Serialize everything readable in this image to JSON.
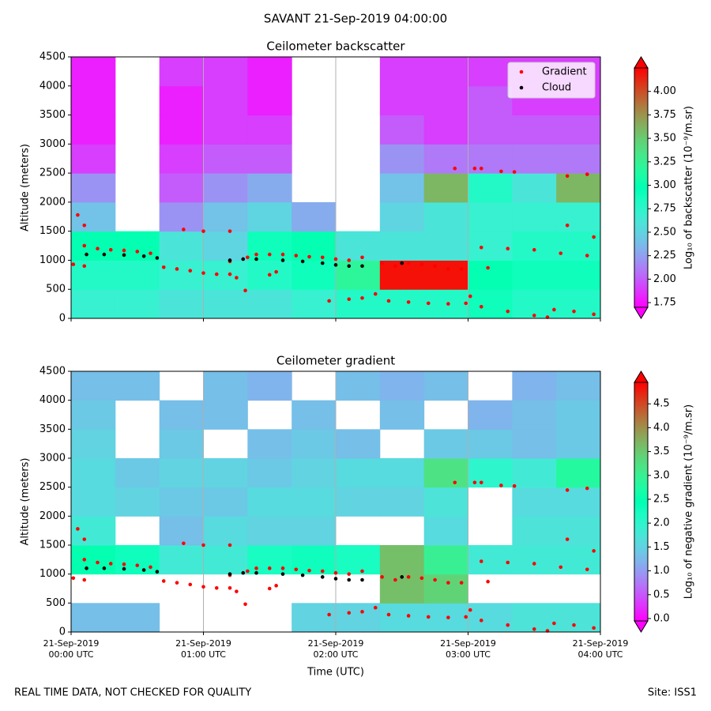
{
  "title": "SAVANT 21-Sep-2019 04:00:00",
  "footer": "REAL TIME DATA, NOT CHECKED FOR QUALITY",
  "site": "Site: ISS1",
  "chart_data": [
    {
      "type": "heatmap",
      "title": "Ceilometer backscatter",
      "ylabel": "Altitude (meters)",
      "xlim": [
        0,
        240
      ],
      "xticks": [
        0,
        60,
        120,
        180,
        240
      ],
      "ylim": [
        0,
        4500
      ],
      "yticks": [
        0,
        500,
        1000,
        1500,
        2000,
        2500,
        3000,
        3500,
        4000,
        4500
      ],
      "grid": "x",
      "colormap": "rainbow",
      "clim": [
        1.7,
        4.25
      ],
      "cticks": [
        1.75,
        {
          "value": 2,
          "label": "2.00"
        },
        2.25,
        {
          "value": 2.5,
          "label": "2.50"
        },
        2.75,
        {
          "value": 3,
          "label": "3.00"
        },
        3.25,
        {
          "value": 3.5,
          "label": "3.50"
        },
        3.75,
        {
          "value": 4,
          "label": "4.00"
        }
      ],
      "clabel": "Log₁₀ of backscatter (10⁻⁹/m.sr)",
      "xedges": [
        0,
        20,
        40,
        60,
        80,
        100,
        120,
        140,
        160,
        180,
        200,
        220,
        240
      ],
      "yedges": [
        0,
        500,
        1000,
        1500,
        2000,
        2500,
        3000,
        3500,
        4000,
        4500
      ],
      "z": [
        [
          2.7,
          2.7,
          2.6,
          2.6,
          2.6,
          2.7,
          2.8,
          2.8,
          2.8,
          2.9,
          2.8,
          2.8
        ],
        [
          2.8,
          2.8,
          2.7,
          2.7,
          2.8,
          2.9,
          3.2,
          4.2,
          4.2,
          3.0,
          2.9,
          2.9
        ],
        [
          3.0,
          3.0,
          2.6,
          2.5,
          2.9,
          3.0,
          2.6,
          2.6,
          2.6,
          2.7,
          2.8,
          2.8
        ],
        [
          2.4,
          null,
          2.2,
          2.4,
          2.5,
          2.3,
          null,
          2.5,
          2.6,
          2.7,
          2.7,
          2.7
        ],
        [
          2.2,
          null,
          2.0,
          2.2,
          2.3,
          null,
          null,
          2.4,
          3.6,
          2.8,
          2.6,
          3.6
        ],
        [
          1.9,
          null,
          1.9,
          2.0,
          2.0,
          null,
          null,
          2.2,
          2.1,
          2.1,
          2.1,
          2.1
        ],
        [
          1.8,
          null,
          1.8,
          1.9,
          1.9,
          null,
          null,
          2.0,
          1.9,
          2.0,
          2.0,
          2.0
        ],
        [
          1.8,
          null,
          1.8,
          1.9,
          1.8,
          null,
          null,
          1.9,
          1.9,
          2.0,
          1.9,
          1.9
        ],
        [
          1.8,
          null,
          1.9,
          1.9,
          1.8,
          null,
          null,
          1.9,
          1.9,
          1.9,
          1.9,
          1.9
        ]
      ],
      "legend": "upper right",
      "series": [
        {
          "name": "Gradient",
          "color": "#ff0000",
          "x": [
            1,
            6,
            3,
            6,
            6,
            12,
            18,
            24,
            30,
            36,
            42,
            48,
            54,
            60,
            66,
            72,
            51,
            60,
            72,
            72,
            75,
            79,
            84,
            90,
            80,
            90,
            93,
            96,
            102,
            108,
            114,
            120,
            126,
            132,
            117,
            126,
            132,
            138,
            141,
            147,
            153,
            159,
            165,
            171,
            177,
            144,
            153,
            162,
            171,
            179,
            174,
            183,
            186,
            195,
            201,
            186,
            198,
            210,
            222,
            234,
            186,
            198,
            210,
            216,
            219,
            228,
            237,
            225,
            237,
            225,
            234,
            189,
            181
          ],
          "values": [
            930,
            900,
            1780,
            1600,
            1250,
            1200,
            1180,
            1170,
            1150,
            1120,
            880,
            850,
            820,
            780,
            760,
            760,
            1530,
            1500,
            1500,
            980,
            700,
            480,
            1100,
            1100,
            1050,
            750,
            800,
            1100,
            1080,
            1060,
            1050,
            1020,
            1000,
            1050,
            300,
            330,
            350,
            420,
            950,
            900,
            950,
            930,
            900,
            850,
            850,
            300,
            280,
            260,
            250,
            260,
            2580,
            2580,
            2580,
            2530,
            2520,
            1220,
            1200,
            1180,
            1120,
            1080,
            200,
            120,
            50,
            20,
            150,
            120,
            70,
            1600,
            1400,
            2450,
            2480,
            870,
            380
          ]
        },
        {
          "name": "Cloud",
          "color": "#000000",
          "x": [
            7,
            15,
            24,
            33,
            39,
            72,
            78,
            84,
            96,
            105,
            114,
            120,
            126,
            132,
            150
          ],
          "values": [
            1100,
            1100,
            1090,
            1070,
            1040,
            1000,
            1020,
            1020,
            1000,
            980,
            950,
            920,
            900,
            900,
            950
          ]
        }
      ]
    },
    {
      "type": "heatmap",
      "title": "Ceilometer gradient",
      "ylabel": "Altitude (meters)",
      "xlabel": "Time (UTC)",
      "xlim": [
        0,
        240
      ],
      "xticks": [
        {
          "value": 0,
          "label": "21-Sep-2019\n00:00 UTC"
        },
        {
          "value": 60,
          "label": "21-Sep-2019\n01:00 UTC"
        },
        {
          "value": 120,
          "label": "21-Sep-2019\n02:00 UTC"
        },
        {
          "value": 180,
          "label": "21-Sep-2019\n03:00 UTC"
        },
        {
          "value": 240,
          "label": "21-Sep-2019\n04:00 UTC"
        }
      ],
      "ylim": [
        0,
        4500
      ],
      "yticks": [
        0,
        500,
        1000,
        1500,
        2000,
        2500,
        3000,
        3500,
        4000,
        4500
      ],
      "grid": "x",
      "colormap": "rainbow",
      "clim": [
        -0.05,
        4.95
      ],
      "cticks": [
        {
          "value": 0,
          "label": "0.0"
        },
        0.5,
        {
          "value": 1,
          "label": "1.0"
        },
        1.5,
        {
          "value": 2,
          "label": "2.0"
        },
        2.5,
        {
          "value": 3,
          "label": "3.0"
        },
        3.5,
        {
          "value": 4,
          "label": "4.0"
        },
        4.5
      ],
      "clabel": "Log₁₀ of negative gradient (10⁻⁹/m.sr)",
      "xedges": [
        0,
        20,
        40,
        60,
        80,
        100,
        120,
        140,
        160,
        180,
        200,
        220,
        240
      ],
      "yedges": [
        0,
        500,
        1000,
        1500,
        2000,
        2500,
        3000,
        3500,
        4000,
        4500
      ],
      "z": [
        [
          1.3,
          1.3,
          null,
          null,
          null,
          1.5,
          1.5,
          1.6,
          1.6,
          1.6,
          1.7,
          1.7
        ],
        [
          null,
          null,
          null,
          null,
          null,
          null,
          null,
          3.6,
          3.4,
          null,
          null,
          null
        ],
        [
          2.5,
          2.3,
          1.8,
          1.8,
          2.2,
          2.3,
          2.2,
          3.6,
          3.0,
          1.8,
          1.8,
          1.8
        ],
        [
          1.8,
          null,
          1.3,
          1.6,
          1.5,
          1.5,
          null,
          null,
          1.6,
          null,
          1.7,
          1.7
        ],
        [
          1.6,
          1.5,
          1.4,
          1.4,
          1.6,
          1.6,
          1.5,
          1.5,
          1.7,
          null,
          1.6,
          1.6
        ],
        [
          1.6,
          1.4,
          1.5,
          1.5,
          1.4,
          1.5,
          1.6,
          1.6,
          3.2,
          2.0,
          1.8,
          2.8
        ],
        [
          1.5,
          null,
          1.4,
          null,
          1.3,
          1.4,
          1.3,
          null,
          1.4,
          1.4,
          1.3,
          1.4
        ],
        [
          1.4,
          null,
          1.3,
          1.3,
          null,
          1.3,
          null,
          1.3,
          null,
          1.2,
          1.3,
          1.4
        ],
        [
          1.3,
          1.3,
          null,
          1.3,
          1.2,
          null,
          1.3,
          1.2,
          1.3,
          null,
          1.2,
          1.3
        ]
      ],
      "series": [
        {
          "color": "#ff0000",
          "x": [
            1,
            6,
            3,
            6,
            6,
            12,
            18,
            24,
            30,
            36,
            42,
            48,
            54,
            60,
            66,
            72,
            51,
            60,
            72,
            72,
            75,
            79,
            84,
            90,
            80,
            90,
            93,
            96,
            102,
            108,
            114,
            120,
            126,
            132,
            117,
            126,
            132,
            138,
            141,
            147,
            153,
            159,
            165,
            171,
            177,
            144,
            153,
            162,
            171,
            179,
            174,
            183,
            186,
            195,
            201,
            186,
            198,
            210,
            222,
            234,
            186,
            198,
            210,
            216,
            219,
            228,
            237,
            225,
            237,
            225,
            234,
            189,
            181
          ],
          "values": [
            930,
            900,
            1780,
            1600,
            1250,
            1200,
            1180,
            1170,
            1150,
            1120,
            880,
            850,
            820,
            780,
            760,
            760,
            1530,
            1500,
            1500,
            980,
            700,
            480,
            1100,
            1100,
            1050,
            750,
            800,
            1100,
            1080,
            1060,
            1050,
            1020,
            1000,
            1050,
            300,
            330,
            350,
            420,
            950,
            900,
            950,
            930,
            900,
            850,
            850,
            300,
            280,
            260,
            250,
            260,
            2580,
            2580,
            2580,
            2530,
            2520,
            1220,
            1200,
            1180,
            1120,
            1080,
            200,
            120,
            50,
            20,
            150,
            120,
            70,
            1600,
            1400,
            2450,
            2480,
            870,
            380
          ]
        },
        {
          "color": "#000000",
          "x": [
            7,
            15,
            24,
            33,
            39,
            72,
            78,
            84,
            96,
            105,
            114,
            120,
            126,
            132,
            150
          ],
          "values": [
            1100,
            1100,
            1090,
            1070,
            1040,
            1000,
            1020,
            1020,
            1000,
            980,
            950,
            920,
            900,
            900,
            950
          ]
        }
      ]
    }
  ]
}
